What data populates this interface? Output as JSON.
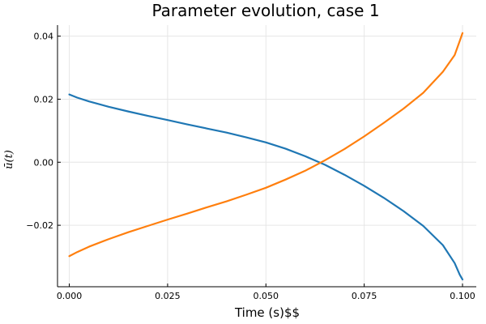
{
  "chart_data": {
    "type": "line",
    "title": "Parameter evolution, case 1",
    "xlabel": "Time (s)$$",
    "ylabel": "ū(t)",
    "xlim": [
      -0.003,
      0.1035
    ],
    "ylim": [
      -0.0395,
      0.0435
    ],
    "xticks": [
      0.0,
      0.025,
      0.05,
      0.075,
      0.1
    ],
    "xtick_labels": [
      "0.000",
      "0.025",
      "0.050",
      "0.075",
      "0.100"
    ],
    "yticks": [
      -0.02,
      0.0,
      0.02,
      0.04
    ],
    "ytick_labels": [
      "−0.02",
      "0.00",
      "0.02",
      "0.04"
    ],
    "grid": true,
    "legend": "none",
    "series": [
      {
        "color": "#1f77b4",
        "points": [
          [
            0.0,
            0.0215
          ],
          [
            0.002,
            0.0205
          ],
          [
            0.005,
            0.0193
          ],
          [
            0.01,
            0.0176
          ],
          [
            0.015,
            0.0161
          ],
          [
            0.02,
            0.0147
          ],
          [
            0.025,
            0.0134
          ],
          [
            0.03,
            0.012
          ],
          [
            0.035,
            0.0107
          ],
          [
            0.04,
            0.0094
          ],
          [
            0.045,
            0.0079
          ],
          [
            0.05,
            0.0063
          ],
          [
            0.055,
            0.0043
          ],
          [
            0.06,
            0.0019
          ],
          [
            0.065,
            -0.0008
          ],
          [
            0.07,
            -0.004
          ],
          [
            0.075,
            -0.0075
          ],
          [
            0.08,
            -0.0113
          ],
          [
            0.085,
            -0.0155
          ],
          [
            0.09,
            -0.0202
          ],
          [
            0.095,
            -0.0263
          ],
          [
            0.098,
            -0.032
          ],
          [
            0.0993,
            -0.0357
          ],
          [
            0.1,
            -0.0372
          ]
        ]
      },
      {
        "color": "#ff7f0e",
        "points": [
          [
            0.0,
            -0.0298
          ],
          [
            0.002,
            -0.0285
          ],
          [
            0.005,
            -0.0268
          ],
          [
            0.01,
            -0.0244
          ],
          [
            0.015,
            -0.0222
          ],
          [
            0.02,
            -0.0202
          ],
          [
            0.025,
            -0.0182
          ],
          [
            0.03,
            -0.0163
          ],
          [
            0.035,
            -0.0143
          ],
          [
            0.04,
            -0.0124
          ],
          [
            0.045,
            -0.0103
          ],
          [
            0.05,
            -0.0081
          ],
          [
            0.055,
            -0.0055
          ],
          [
            0.06,
            -0.0027
          ],
          [
            0.065,
            0.0006
          ],
          [
            0.07,
            0.0042
          ],
          [
            0.075,
            0.0082
          ],
          [
            0.08,
            0.0125
          ],
          [
            0.085,
            0.017
          ],
          [
            0.09,
            0.022
          ],
          [
            0.095,
            0.0287
          ],
          [
            0.098,
            0.034
          ],
          [
            0.0993,
            0.0385
          ],
          [
            0.1,
            0.041
          ]
        ]
      }
    ]
  }
}
